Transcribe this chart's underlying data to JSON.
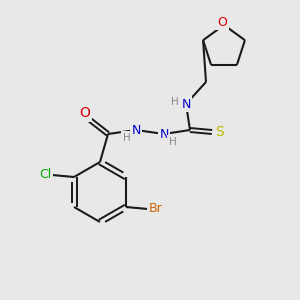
{
  "bg_color": "#e8e8e8",
  "bond_color": "#1a1a1a",
  "atom_colors": {
    "O": "#dd0000",
    "N": "#0000cc",
    "S": "#bbbb00",
    "Cl": "#00aa00",
    "Br": "#cc6600",
    "C": "#1a1a1a",
    "H": "#888888"
  }
}
